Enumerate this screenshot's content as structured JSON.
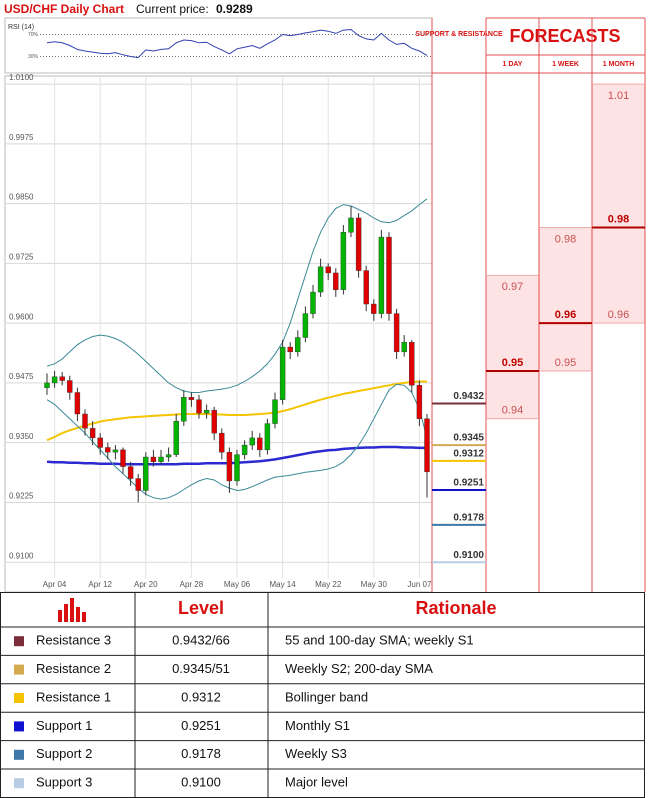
{
  "chart_data": {
    "type": "candlestick",
    "title": "USD/CHF Daily Chart",
    "current_price_label": "Current price:",
    "current_price": 0.9289,
    "categories": [
      null,
      "Apr 04",
      null,
      null,
      null,
      null,
      null,
      "Apr 12",
      null,
      null,
      null,
      null,
      null,
      "Apr 20",
      null,
      null,
      null,
      null,
      null,
      "Apr 28",
      null,
      null,
      null,
      null,
      null,
      "May 06",
      null,
      null,
      null,
      null,
      null,
      "May 14",
      null,
      null,
      null,
      null,
      null,
      "May 22",
      null,
      null,
      null,
      null,
      null,
      "May 30",
      null,
      null,
      null,
      null,
      null,
      "Jun 07",
      null
    ],
    "open": [
      0.9465,
      0.9475,
      0.9488,
      0.948,
      0.9455,
      0.941,
      0.938,
      0.936,
      0.934,
      0.933,
      0.9335,
      0.93,
      0.9275,
      0.925,
      0.932,
      0.931,
      0.932,
      0.9325,
      0.9395,
      0.9445,
      0.944,
      0.9412,
      0.9418,
      0.937,
      0.933,
      0.927,
      0.9325,
      0.9345,
      0.936,
      0.9335,
      0.939,
      0.944,
      0.955,
      0.954,
      0.957,
      0.962,
      0.9665,
      0.9718,
      0.9705,
      0.967,
      0.979,
      0.982,
      0.971,
      0.964,
      0.962,
      0.978,
      0.962,
      0.954,
      0.956,
      0.947,
      0.94
    ],
    "high": [
      0.9495,
      0.95,
      0.9498,
      0.949,
      0.9465,
      0.942,
      0.9395,
      0.937,
      0.935,
      0.9345,
      0.934,
      0.931,
      0.9285,
      0.933,
      0.9335,
      0.9335,
      0.934,
      0.941,
      0.946,
      0.9455,
      0.945,
      0.943,
      0.9425,
      0.938,
      0.934,
      0.9335,
      0.9355,
      0.9375,
      0.937,
      0.94,
      0.9455,
      0.9565,
      0.956,
      0.9585,
      0.9635,
      0.968,
      0.9735,
      0.9725,
      0.9715,
      0.9805,
      0.9845,
      0.983,
      0.972,
      0.965,
      0.9795,
      0.979,
      0.963,
      0.9575,
      0.9565,
      0.948,
      0.941
    ],
    "low": [
      0.945,
      0.9465,
      0.947,
      0.944,
      0.9395,
      0.9365,
      0.9345,
      0.9325,
      0.9315,
      0.9315,
      0.9285,
      0.926,
      0.9225,
      0.924,
      0.93,
      0.9305,
      0.931,
      0.932,
      0.9385,
      0.9425,
      0.94,
      0.94,
      0.9355,
      0.9315,
      0.9245,
      0.926,
      0.9315,
      0.9335,
      0.932,
      0.9325,
      0.938,
      0.943,
      0.9525,
      0.953,
      0.956,
      0.961,
      0.9655,
      0.969,
      0.9655,
      0.966,
      0.978,
      0.9695,
      0.9625,
      0.9605,
      0.961,
      0.9605,
      0.9525,
      0.953,
      0.9455,
      0.9385,
      0.9235
    ],
    "close": [
      0.9475,
      0.9488,
      0.948,
      0.9455,
      0.941,
      0.938,
      0.936,
      0.934,
      0.933,
      0.9335,
      0.93,
      0.9275,
      0.925,
      0.932,
      0.931,
      0.932,
      0.9325,
      0.9395,
      0.9445,
      0.944,
      0.9412,
      0.9418,
      0.937,
      0.933,
      0.927,
      0.9325,
      0.9345,
      0.936,
      0.9335,
      0.939,
      0.944,
      0.955,
      0.954,
      0.957,
      0.962,
      0.9665,
      0.9718,
      0.9705,
      0.967,
      0.979,
      0.982,
      0.971,
      0.964,
      0.962,
      0.978,
      0.962,
      0.954,
      0.956,
      0.947,
      0.94,
      0.9289
    ],
    "up_color": "#00b400",
    "down_color": "#e00000",
    "ylim": [
      0.9067,
      1.0119
    ],
    "yticks": [
      {
        "value": 0.91,
        "label": "0.9100"
      },
      0.9225,
      {
        "value": 0.935,
        "label": "0.9350"
      },
      0.9475,
      {
        "value": 0.96,
        "label": "0.9600"
      },
      0.9725,
      {
        "value": 0.985,
        "label": "0.9850"
      },
      0.9975,
      {
        "value": 1.01,
        "label": "1.0100"
      }
    ],
    "grid": true,
    "series": [
      {
        "color": "#2a2ad0",
        "width": 2.5,
        "values": [
          0.931,
          0.9309,
          0.9309,
          0.9308,
          0.9308,
          0.9307,
          0.9307,
          0.9306,
          0.9306,
          0.9306,
          0.9305,
          0.9305,
          0.9305,
          0.9305,
          0.9305,
          0.9305,
          0.9305,
          0.9305,
          0.9306,
          0.9306,
          0.9306,
          0.9307,
          0.9307,
          0.9307,
          0.9307,
          0.9308,
          0.9309,
          0.931,
          0.9311,
          0.9313,
          0.9315,
          0.9318,
          0.9321,
          0.9324,
          0.9327,
          0.933,
          0.9332,
          0.9334,
          0.9335,
          0.9337,
          0.9338,
          0.9339,
          0.934,
          0.934,
          0.9341,
          0.9341,
          0.9341,
          0.934,
          0.934,
          0.9339,
          0.9339
        ]
      },
      {
        "color": "#f5c400",
        "width": 2,
        "values": [
          0.9355,
          0.9362,
          0.937,
          0.9376,
          0.9381,
          0.9386,
          0.939,
          0.9394,
          0.9397,
          0.9399,
          0.9401,
          0.9403,
          0.9404,
          0.9405,
          0.9406,
          0.9407,
          0.9408,
          0.9409,
          0.941,
          0.941,
          0.941,
          0.941,
          0.9409,
          0.9409,
          0.9408,
          0.9408,
          0.9408,
          0.9409,
          0.941,
          0.9411,
          0.9413,
          0.9416,
          0.942,
          0.9425,
          0.943,
          0.9435,
          0.944,
          0.9444,
          0.9448,
          0.9452,
          0.9455,
          0.9458,
          0.9461,
          0.9464,
          0.9467,
          0.947,
          0.9473,
          0.9475,
          0.9477,
          0.9478,
          0.9478
        ]
      },
      {
        "color": "#3a8a96",
        "width": 1,
        "values": [
          0.951,
          0.9515,
          0.9525,
          0.954,
          0.9555,
          0.9565,
          0.9572,
          0.9575,
          0.9573,
          0.9568,
          0.956,
          0.9548,
          0.9535,
          0.952,
          0.9505,
          0.949,
          0.9475,
          0.9465,
          0.9458,
          0.9455,
          0.9455,
          0.9458,
          0.946,
          0.9462,
          0.9465,
          0.947,
          0.9478,
          0.9488,
          0.95,
          0.9515,
          0.9535,
          0.956,
          0.96,
          0.965,
          0.97,
          0.975,
          0.979,
          0.982,
          0.984,
          0.9848,
          0.9845,
          0.9838,
          0.983,
          0.982,
          0.9812,
          0.981,
          0.9815,
          0.9825,
          0.9835,
          0.9848,
          0.986
        ]
      },
      {
        "color": "#3a8a96",
        "width": 1,
        "values": [
          0.944,
          0.943,
          0.9415,
          0.94,
          0.9385,
          0.937,
          0.9352,
          0.9335,
          0.9318,
          0.93,
          0.9285,
          0.927,
          0.9255,
          0.9242,
          0.9235,
          0.9232,
          0.9235,
          0.9242,
          0.9252,
          0.9262,
          0.927,
          0.9275,
          0.9272,
          0.9262,
          0.9255,
          0.925,
          0.9252,
          0.9258,
          0.9265,
          0.9272,
          0.9278,
          0.928,
          0.9282,
          0.9285,
          0.9288,
          0.929,
          0.9292,
          0.9295,
          0.93,
          0.931,
          0.9325,
          0.9345,
          0.937,
          0.94,
          0.943,
          0.946,
          0.9472,
          0.947,
          0.9455,
          0.942,
          0.936
        ]
      }
    ],
    "rsi": {
      "label": "RSI (14)",
      "color": "#3040b0",
      "ylim": [
        0,
        100
      ],
      "yticks": [
        {
          "value": 70,
          "label": "70%"
        },
        {
          "value": 30,
          "label": "30%"
        }
      ],
      "values": [
        55,
        57,
        55,
        50,
        43,
        40,
        38,
        36,
        35,
        37,
        33,
        30,
        28,
        42,
        40,
        43,
        44,
        55,
        60,
        59,
        55,
        56,
        48,
        42,
        35,
        44,
        47,
        50,
        45,
        53,
        60,
        70,
        68,
        70,
        73,
        75,
        78,
        76,
        72,
        78,
        79,
        68,
        62,
        60,
        72,
        60,
        52,
        54,
        45,
        40,
        32
      ]
    }
  },
  "levels": {
    "header": "SUPPORT & RESISTANCE",
    "items": [
      {
        "value": 0.9432,
        "color": "#7b2d3b"
      },
      {
        "value": 0.9345,
        "color": "#d4aa50"
      },
      {
        "value": 0.9312,
        "color": "#f5c400"
      },
      {
        "value": 0.9251,
        "color": "#1010d0"
      },
      {
        "value": 0.9178,
        "color": "#3d78a8"
      },
      {
        "value": 0.91,
        "label": "0.9100",
        "color": "#b8cce4"
      }
    ]
  },
  "forecasts": {
    "title": "FORECASTS",
    "columns": [
      {
        "name": "1 DAY",
        "high": 0.97,
        "mid": 0.95,
        "low": 0.94
      },
      {
        "name": "1 WEEK",
        "high": 0.98,
        "mid": 0.96,
        "low": 0.95
      },
      {
        "name": "1 MONTH",
        "high": 1.01,
        "mid": 0.98,
        "low": 0.96
      }
    ]
  },
  "table": {
    "header": [
      "Level",
      "Rationale"
    ],
    "rows": [
      {
        "name": "Resistance 3",
        "level": "0.9432/66",
        "rationale": "55 and 100-day SMA; weekly S1"
      },
      {
        "name": "Resistance 2",
        "level": "0.9345/51",
        "rationale": "Weekly S2; 200-day SMA"
      },
      {
        "name": "Resistance 1",
        "level": "0.9312",
        "rationale": "Bollinger band"
      },
      {
        "name": "Support 1",
        "level": "0.9251",
        "rationale": "Monthly S1"
      },
      {
        "name": "Support 2",
        "level": "0.9178",
        "rationale": "Weekly S3"
      },
      {
        "name": "Support 3",
        "level": "0.9100",
        "rationale": "Major level"
      }
    ]
  }
}
